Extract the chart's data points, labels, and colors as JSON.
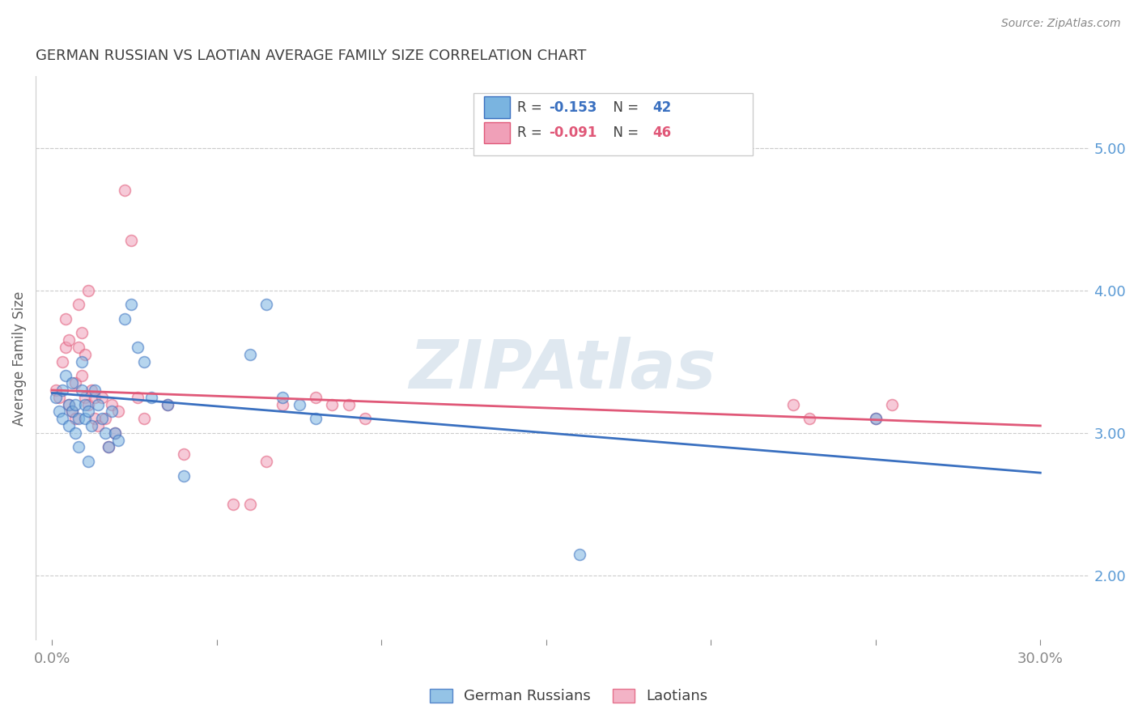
{
  "title": "GERMAN RUSSIAN VS LAOTIAN AVERAGE FAMILY SIZE CORRELATION CHART",
  "source": "Source: ZipAtlas.com",
  "ylabel": "Average Family Size",
  "right_yticks": [
    2.0,
    3.0,
    4.0,
    5.0
  ],
  "watermark": "ZIPAtlas",
  "legend_label1": "German Russians",
  "legend_label2": "Laotians",
  "legend_r1": "R = ",
  "legend_r1_val": "-0.153",
  "legend_n1": "  N = ",
  "legend_n1_val": "42",
  "legend_r2": "R = ",
  "legend_r2_val": "-0.091",
  "legend_n2": "  N = ",
  "legend_n2_val": "46",
  "blue_scatter_x": [
    0.001,
    0.002,
    0.003,
    0.003,
    0.004,
    0.005,
    0.005,
    0.006,
    0.006,
    0.007,
    0.007,
    0.008,
    0.008,
    0.009,
    0.009,
    0.01,
    0.01,
    0.011,
    0.011,
    0.012,
    0.013,
    0.014,
    0.015,
    0.016,
    0.017,
    0.018,
    0.019,
    0.02,
    0.022,
    0.024,
    0.026,
    0.028,
    0.03,
    0.035,
    0.04,
    0.06,
    0.065,
    0.07,
    0.075,
    0.08,
    0.16,
    0.25
  ],
  "blue_scatter_y": [
    3.25,
    3.15,
    3.3,
    3.1,
    3.4,
    3.2,
    3.05,
    3.35,
    3.15,
    3.0,
    3.2,
    2.9,
    3.1,
    3.3,
    3.5,
    3.1,
    3.2,
    2.8,
    3.15,
    3.05,
    3.3,
    3.2,
    3.1,
    3.0,
    2.9,
    3.15,
    3.0,
    2.95,
    3.8,
    3.9,
    3.6,
    3.5,
    3.25,
    3.2,
    2.7,
    3.55,
    3.9,
    3.25,
    3.2,
    3.1,
    2.15,
    3.1
  ],
  "pink_scatter_x": [
    0.001,
    0.002,
    0.003,
    0.004,
    0.004,
    0.005,
    0.005,
    0.006,
    0.007,
    0.007,
    0.008,
    0.008,
    0.009,
    0.009,
    0.01,
    0.01,
    0.011,
    0.011,
    0.012,
    0.013,
    0.013,
    0.014,
    0.015,
    0.016,
    0.017,
    0.018,
    0.019,
    0.02,
    0.022,
    0.024,
    0.026,
    0.028,
    0.035,
    0.04,
    0.055,
    0.06,
    0.065,
    0.07,
    0.08,
    0.085,
    0.09,
    0.095,
    0.225,
    0.23,
    0.25,
    0.255
  ],
  "pink_scatter_y": [
    3.3,
    3.25,
    3.5,
    3.6,
    3.8,
    3.2,
    3.65,
    3.15,
    3.35,
    3.1,
    3.9,
    3.6,
    3.7,
    3.4,
    3.55,
    3.25,
    3.2,
    4.0,
    3.3,
    3.1,
    3.25,
    3.05,
    3.25,
    3.1,
    2.9,
    3.2,
    3.0,
    3.15,
    4.7,
    4.35,
    3.25,
    3.1,
    3.2,
    2.85,
    2.5,
    2.5,
    2.8,
    3.2,
    3.25,
    3.2,
    3.2,
    3.1,
    3.2,
    3.1,
    3.1,
    3.2
  ],
  "blue_line_x0": 0.0,
  "blue_line_x1": 0.3,
  "blue_line_y0": 3.28,
  "blue_line_y1": 2.72,
  "pink_line_x0": 0.0,
  "pink_line_x1": 0.3,
  "pink_line_y0": 3.3,
  "pink_line_y1": 3.05,
  "blue_color": "#7ab4e0",
  "pink_color": "#f0a0b8",
  "blue_line_color": "#3a70c0",
  "pink_line_color": "#e05878",
  "marker_size": 100,
  "alpha": 0.55,
  "xlim": [
    -0.005,
    0.315
  ],
  "ylim": [
    1.55,
    5.5
  ],
  "grid_color": "#cccccc",
  "bg_color": "#ffffff",
  "title_color": "#404040",
  "source_color": "#888888",
  "axis_color": "#5a9ad5",
  "watermark_color": "#b8ccdf",
  "watermark_fontsize": 60,
  "watermark_alpha": 0.45
}
